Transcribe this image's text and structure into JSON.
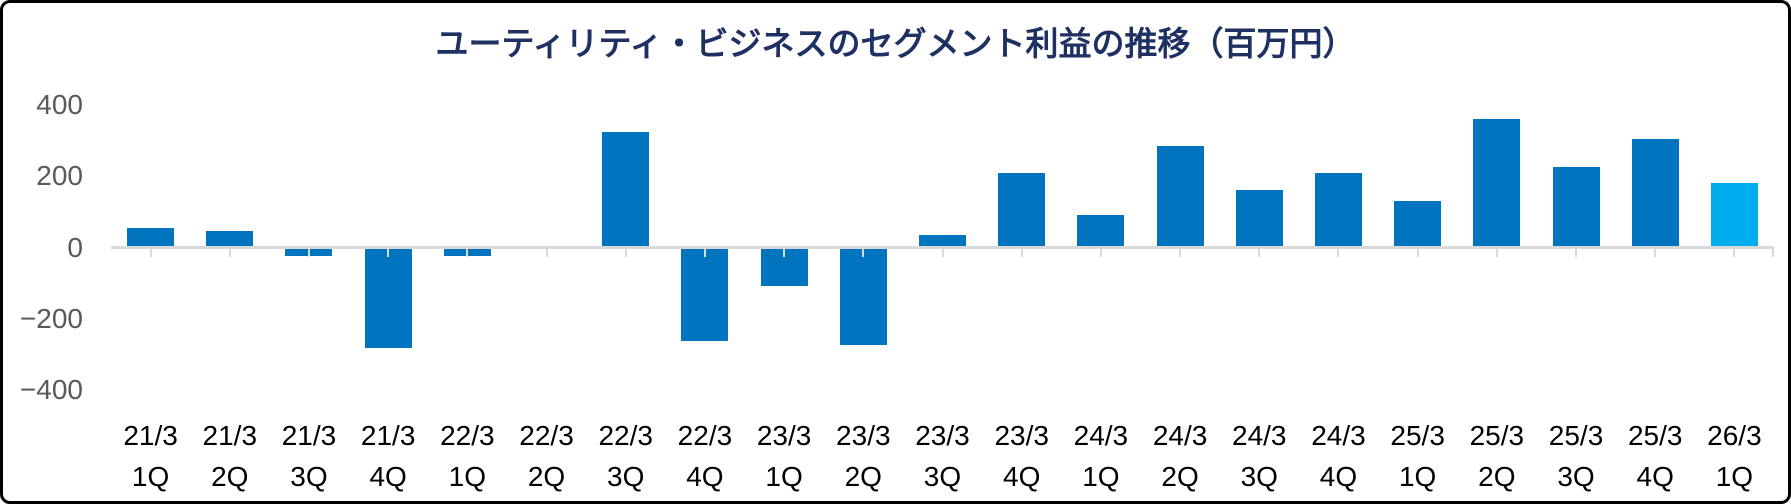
{
  "title": "ユーティリティ・ビジネスのセグメント利益の推移（百万円）",
  "colors": {
    "bar": "#0074BE",
    "bar_highlight": "#00AEEF",
    "axis": "#D9D9D9",
    "title_text": "#1F3163",
    "y_label_text": "#595959",
    "x_label_text": "#000000",
    "border": "#000000",
    "background": "#FFFFFF"
  },
  "chart_data": {
    "type": "bar",
    "title": "ユーティリティ・ビジネスのセグメント利益の推移（百万円）",
    "unit": "百万円",
    "categories": [
      {
        "year": "21/3",
        "quarter": "1Q"
      },
      {
        "year": "21/3",
        "quarter": "2Q"
      },
      {
        "year": "21/3",
        "quarter": "3Q"
      },
      {
        "year": "21/3",
        "quarter": "4Q"
      },
      {
        "year": "22/3",
        "quarter": "1Q"
      },
      {
        "year": "22/3",
        "quarter": "2Q"
      },
      {
        "year": "22/3",
        "quarter": "3Q"
      },
      {
        "year": "22/3",
        "quarter": "4Q"
      },
      {
        "year": "23/3",
        "quarter": "1Q"
      },
      {
        "year": "23/3",
        "quarter": "2Q"
      },
      {
        "year": "23/3",
        "quarter": "3Q"
      },
      {
        "year": "23/3",
        "quarter": "4Q"
      },
      {
        "year": "24/3",
        "quarter": "1Q"
      },
      {
        "year": "24/3",
        "quarter": "2Q"
      },
      {
        "year": "24/3",
        "quarter": "3Q"
      },
      {
        "year": "24/3",
        "quarter": "4Q"
      },
      {
        "year": "25/3",
        "quarter": "1Q"
      },
      {
        "year": "25/3",
        "quarter": "2Q"
      },
      {
        "year": "25/3",
        "quarter": "3Q"
      },
      {
        "year": "25/3",
        "quarter": "4Q"
      },
      {
        "year": "26/3",
        "quarter": "1Q"
      }
    ],
    "values": [
      55,
      45,
      -20,
      -280,
      -20,
      0,
      325,
      -260,
      -105,
      -270,
      35,
      210,
      90,
      285,
      160,
      210,
      130,
      360,
      225,
      305,
      180
    ],
    "highlight_index": 20,
    "yticks": [
      400,
      200,
      0,
      -200,
      -400
    ],
    "ytick_labels": [
      "400",
      "200",
      "0",
      "−200",
      "−400"
    ],
    "ylim": [
      -420,
      460
    ],
    "grid": "off",
    "legend": "none",
    "xlabel": "",
    "ylabel": ""
  }
}
